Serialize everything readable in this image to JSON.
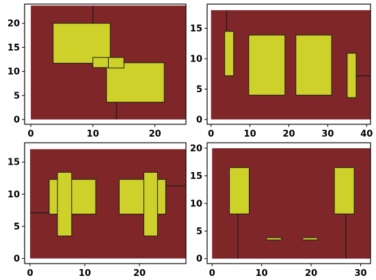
{
  "figure": {
    "background": "#ffffff"
  },
  "chart_data": [
    {
      "type": "rectangle-map",
      "xlim": [
        -1,
        25
      ],
      "ylim": [
        -1,
        24
      ],
      "xticks": [
        0,
        10,
        20
      ],
      "yticks": [
        0,
        5,
        10,
        15,
        20
      ],
      "grid": false,
      "field": {
        "x0": 0,
        "x1": 25,
        "y0": 0,
        "y1": 23.7,
        "color": "#7f2629"
      },
      "rects": [
        {
          "x0": 3.6,
          "x1": 12.8,
          "y0": 11.7,
          "y1": 20
        },
        {
          "x0": 12.2,
          "x1": 21.5,
          "y0": 3.6,
          "y1": 11.8
        },
        {
          "x0": 10,
          "x1": 12.5,
          "y0": 10.8,
          "y1": 12.9
        },
        {
          "x0": 12.5,
          "x1": 15,
          "y0": 10.7,
          "y1": 12.9
        }
      ],
      "lines": [
        {
          "x1": 10,
          "y1": 20,
          "x2": 10,
          "y2": 23.7
        },
        {
          "x1": 13.8,
          "y1": 0,
          "x2": 13.8,
          "y2": 3.6
        }
      ],
      "rect_color": "#cdd12a",
      "edge_color": "#1a1a1a"
    },
    {
      "type": "rectangle-map",
      "xlim": [
        -1,
        41
      ],
      "ylim": [
        -0.8,
        19
      ],
      "xticks": [
        0,
        10,
        20,
        30,
        40
      ],
      "yticks": [
        0,
        5,
        10,
        15
      ],
      "grid": false,
      "field": {
        "x0": 0,
        "x1": 41,
        "y0": 0,
        "y1": 18,
        "color": "#7f2629"
      },
      "rects": [
        {
          "x0": 3.5,
          "x1": 5.8,
          "y0": 7.2,
          "y1": 14.5
        },
        {
          "x0": 9.7,
          "x1": 19,
          "y0": 4,
          "y1": 13.9
        },
        {
          "x0": 21.8,
          "x1": 31,
          "y0": 4,
          "y1": 13.9
        },
        {
          "x0": 35,
          "x1": 37.3,
          "y0": 3.6,
          "y1": 10.9
        }
      ],
      "lines": [
        {
          "x1": 4,
          "y1": 14.5,
          "x2": 4,
          "y2": 18
        },
        {
          "x1": 37.3,
          "y1": 7.2,
          "x2": 41,
          "y2": 7.2
        }
      ],
      "rect_color": "#cdd12a",
      "edge_color": "#1a1a1a"
    },
    {
      "type": "rectangle-map",
      "xlim": [
        -1,
        28.5
      ],
      "ylim": [
        -0.8,
        18
      ],
      "xticks": [
        0,
        10,
        20
      ],
      "yticks": [
        0,
        5,
        10,
        15
      ],
      "grid": false,
      "field": {
        "x0": 0,
        "x1": 28.5,
        "y0": 0,
        "y1": 17,
        "color": "#7f2629"
      },
      "rects": [
        {
          "x0": 3.5,
          "x1": 12,
          "y0": 6.9,
          "y1": 12.3
        },
        {
          "x0": 16.3,
          "x1": 24.8,
          "y0": 6.9,
          "y1": 12.3
        },
        {
          "x0": 5,
          "x1": 7.6,
          "y0": 3.5,
          "y1": 13.4
        },
        {
          "x0": 20.8,
          "x1": 23.3,
          "y0": 3.5,
          "y1": 13.4
        }
      ],
      "lines": [
        {
          "x1": 0,
          "y1": 7.1,
          "x2": 3.5,
          "y2": 7.1
        },
        {
          "x1": 24.8,
          "y1": 11.3,
          "x2": 28.5,
          "y2": 11.3
        }
      ],
      "rect_color": "#cdd12a",
      "edge_color": "#1a1a1a"
    },
    {
      "type": "rectangle-map",
      "xlim": [
        -1,
        32
      ],
      "ylim": [
        -0.9,
        21
      ],
      "xticks": [
        0,
        10,
        20,
        30
      ],
      "yticks": [
        0,
        5,
        10,
        15,
        20
      ],
      "grid": false,
      "field": {
        "x0": 0,
        "x1": 32,
        "y0": 0,
        "y1": 20,
        "color": "#7f2629"
      },
      "rects": [
        {
          "x0": 3.5,
          "x1": 7.5,
          "y0": 8.1,
          "y1": 16.5
        },
        {
          "x0": 24.7,
          "x1": 28.7,
          "y0": 8.1,
          "y1": 16.5
        },
        {
          "x0": 11,
          "x1": 14,
          "y0": 3.4,
          "y1": 3.8
        },
        {
          "x0": 18.3,
          "x1": 21.3,
          "y0": 3.4,
          "y1": 3.8
        }
      ],
      "lines": [
        {
          "x1": 5.2,
          "y1": 0,
          "x2": 5.2,
          "y2": 8.1
        },
        {
          "x1": 27,
          "y1": 0,
          "x2": 27,
          "y2": 8.1
        }
      ],
      "rect_color": "#cdd12a",
      "edge_color": "#1a1a1a"
    }
  ]
}
